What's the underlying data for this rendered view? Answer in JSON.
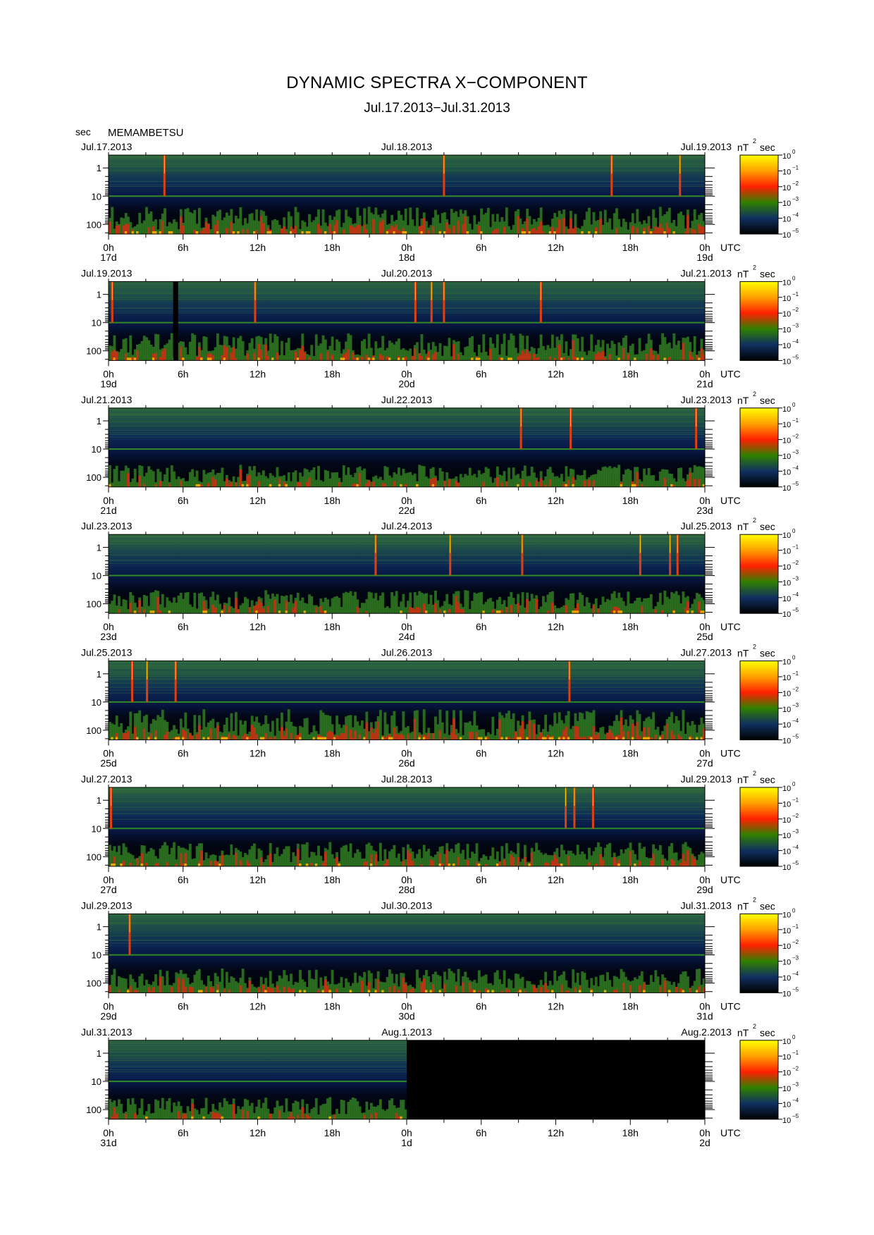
{
  "header": {
    "title": "DYNAMIC SPECTRA X−COMPONENT",
    "subtitle": "Jul.17.2013−Jul.31.2013",
    "unit": "sec",
    "station": "MEMAMBETSU"
  },
  "chart_data": {
    "type": "heatmap",
    "y_axis": {
      "scale": "log",
      "range_sec": [
        1,
        200
      ],
      "ticks": [
        "1",
        "10",
        "100"
      ],
      "reversed": true
    },
    "colorbar": {
      "unit_prefix": "nT",
      "unit_sup": "2",
      "unit_suffix": "sec",
      "scale": "log",
      "range": [
        1e-05,
        1
      ],
      "tick_mantissa": "10",
      "tick_exponents": [
        "0",
        "−1",
        "−2",
        "−3",
        "−4",
        "−5"
      ],
      "colors": [
        "#ffff00",
        "#ffa000",
        "#ff2000",
        "#308000",
        "#103060",
        "#000000"
      ]
    },
    "x_ticks": [
      "0h",
      "6h",
      "12h",
      "18h",
      "0h",
      "6h",
      "12h",
      "18h",
      "0h"
    ],
    "utc_label": "UTC",
    "panels": [
      {
        "date_left": "Jul.17.2013",
        "date_mid": "Jul.18.2013",
        "date_right": "Jul.19.2013",
        "days": [
          "17d",
          "18d",
          "19d"
        ],
        "activity": 0.6,
        "spikes_h": [
          4.5,
          27,
          40.5,
          46
        ],
        "gap_h": []
      },
      {
        "date_left": "Jul.19.2013",
        "date_mid": "Jul.20.2013",
        "date_right": "Jul.21.2013",
        "days": [
          "19d",
          "20d",
          "21d"
        ],
        "activity": 0.6,
        "spikes_h": [
          0.3,
          24.7,
          26,
          27,
          34.8,
          11.8
        ],
        "gap_h": [
          5.2,
          5.6
        ]
      },
      {
        "date_left": "Jul.21.2013",
        "date_mid": "Jul.22.2013",
        "date_right": "Jul.23.2013",
        "days": [
          "21d",
          "22d",
          "23d"
        ],
        "activity": 0.35,
        "spikes_h": [
          33.2,
          37.2,
          47.3
        ],
        "gap_h": []
      },
      {
        "date_left": "Jul.23.2013",
        "date_mid": "Jul.24.2013",
        "date_right": "Jul.25.2013",
        "days": [
          "23d",
          "24d",
          "25d"
        ],
        "activity": 0.4,
        "spikes_h": [
          21.5,
          27.5,
          33.3,
          42.8,
          45.2,
          45.8
        ],
        "gap_h": []
      },
      {
        "date_left": "Jul.25.2013",
        "date_mid": "Jul.26.2013",
        "date_right": "Jul.27.2013",
        "days": [
          "25d",
          "26d",
          "27d"
        ],
        "activity": 0.75,
        "spikes_h": [
          1.9,
          3.1,
          5.4,
          37.1
        ],
        "gap_h": []
      },
      {
        "date_left": "Jul.27.2013",
        "date_mid": "Jul.28.2013",
        "date_right": "Jul.29.2013",
        "days": [
          "27d",
          "28d",
          "29d"
        ],
        "activity": 0.45,
        "spikes_h": [
          0.2,
          36.8,
          37.5,
          39
        ],
        "gap_h": []
      },
      {
        "date_left": "Jul.29.2013",
        "date_mid": "Jul.30.2013",
        "date_right": "Jul.31.2013",
        "days": [
          "29d",
          "30d",
          "31d"
        ],
        "activity": 0.45,
        "spikes_h": [
          1.7
        ],
        "gap_h": []
      },
      {
        "date_left": "Jul.31.2013",
        "date_mid": "Aug.1.2013",
        "date_right": "Aug.2.2013",
        "days": [
          "31d",
          "1d",
          "2d"
        ],
        "activity": 0.35,
        "spikes_h": [],
        "gap_h": [
          24,
          48
        ]
      }
    ]
  }
}
